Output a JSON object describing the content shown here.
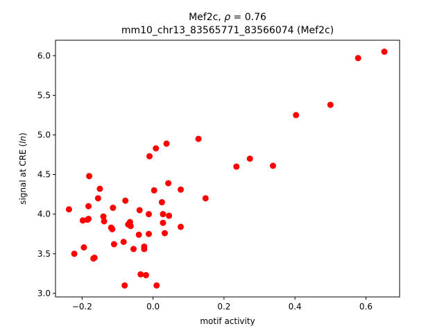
{
  "chart_data": {
    "type": "scatter",
    "title_line1_prefix": "Mef2c, ",
    "title_line1_symbol": "ρ",
    "title_line1_suffix": " = 0.76",
    "title_line2": "mm10_chr13_83565771_83566074 (Mef2c)",
    "xlabel": "motif activity",
    "ylabel_prefix": "signal at CRE (",
    "ylabel_italic": "ln",
    "ylabel_suffix": ")",
    "xlim": [
      -0.275,
      0.695
    ],
    "ylim": [
      2.955,
      6.195
    ],
    "xticks": [
      -0.2,
      0.0,
      0.2,
      0.4,
      0.6
    ],
    "xtick_labels": [
      "−0.2",
      "0.0",
      "0.2",
      "0.4",
      "0.6"
    ],
    "yticks": [
      3.0,
      3.5,
      4.0,
      4.5,
      5.0,
      5.5,
      6.0
    ],
    "ytick_labels": [
      "3.0",
      "3.5",
      "4.0",
      "4.5",
      "5.0",
      "5.5",
      "6.0"
    ],
    "grid": false,
    "marker_color": "#ff0000",
    "points": [
      {
        "x": 0.652,
        "y": 6.05
      },
      {
        "x": 0.578,
        "y": 5.97
      },
      {
        "x": 0.5,
        "y": 5.38
      },
      {
        "x": 0.403,
        "y": 5.25
      },
      {
        "x": 0.128,
        "y": 4.95
      },
      {
        "x": 0.038,
        "y": 4.89
      },
      {
        "x": 0.008,
        "y": 4.83
      },
      {
        "x": -0.01,
        "y": 4.73
      },
      {
        "x": 0.273,
        "y": 4.7
      },
      {
        "x": 0.235,
        "y": 4.6
      },
      {
        "x": 0.338,
        "y": 4.61
      },
      {
        "x": -0.18,
        "y": 4.48
      },
      {
        "x": 0.043,
        "y": 4.39
      },
      {
        "x": -0.15,
        "y": 4.32
      },
      {
        "x": 0.078,
        "y": 4.31
      },
      {
        "x": 0.003,
        "y": 4.3
      },
      {
        "x": -0.155,
        "y": 4.2
      },
      {
        "x": 0.148,
        "y": 4.2
      },
      {
        "x": -0.078,
        "y": 4.17
      },
      {
        "x": 0.025,
        "y": 4.15
      },
      {
        "x": -0.182,
        "y": 4.1
      },
      {
        "x": -0.113,
        "y": 4.08
      },
      {
        "x": -0.237,
        "y": 4.06
      },
      {
        "x": -0.038,
        "y": 4.05
      },
      {
        "x": -0.012,
        "y": 4.0
      },
      {
        "x": 0.028,
        "y": 4.0
      },
      {
        "x": 0.045,
        "y": 3.98
      },
      {
        "x": -0.14,
        "y": 3.97
      },
      {
        "x": -0.182,
        "y": 3.94
      },
      {
        "x": -0.185,
        "y": 3.93
      },
      {
        "x": -0.198,
        "y": 3.92
      },
      {
        "x": -0.138,
        "y": 3.91
      },
      {
        "x": -0.065,
        "y": 3.9
      },
      {
        "x": 0.028,
        "y": 3.89
      },
      {
        "x": -0.07,
        "y": 3.87
      },
      {
        "x": -0.063,
        "y": 3.85
      },
      {
        "x": 0.078,
        "y": 3.84
      },
      {
        "x": -0.118,
        "y": 3.83
      },
      {
        "x": -0.115,
        "y": 3.81
      },
      {
        "x": 0.033,
        "y": 3.76
      },
      {
        "x": -0.04,
        "y": 3.74
      },
      {
        "x": -0.012,
        "y": 3.75
      },
      {
        "x": -0.083,
        "y": 3.65
      },
      {
        "x": -0.11,
        "y": 3.62
      },
      {
        "x": -0.025,
        "y": 3.59
      },
      {
        "x": -0.195,
        "y": 3.58
      },
      {
        "x": -0.055,
        "y": 3.56
      },
      {
        "x": -0.025,
        "y": 3.56
      },
      {
        "x": -0.222,
        "y": 3.5
      },
      {
        "x": -0.165,
        "y": 3.45
      },
      {
        "x": -0.168,
        "y": 3.44
      },
      {
        "x": -0.035,
        "y": 3.24
      },
      {
        "x": -0.02,
        "y": 3.23
      },
      {
        "x": -0.08,
        "y": 3.1
      },
      {
        "x": 0.01,
        "y": 3.1
      }
    ]
  }
}
